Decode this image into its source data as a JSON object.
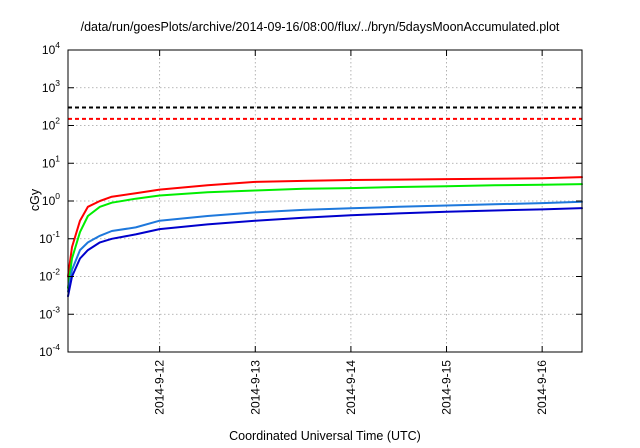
{
  "chart_data": {
    "type": "line",
    "title": "/data/run/goesPlots/archive/2014-09-16/08:00/flux/../bryn/5daysMoonAccumulated.plot",
    "xlabel": "Coordinated Universal Time (UTC)",
    "ylabel": "cGy",
    "y_scale": "log",
    "ylim": [
      0.0001,
      10000
    ],
    "y_ticks": [
      {
        "base": "10",
        "exp": "-4",
        "value": 0.0001
      },
      {
        "base": "10",
        "exp": "-3",
        "value": 0.001
      },
      {
        "base": "10",
        "exp": "-2",
        "value": 0.01
      },
      {
        "base": "10",
        "exp": "-1",
        "value": 0.1
      },
      {
        "base": "10",
        "exp": "0",
        "value": 1
      },
      {
        "base": "10",
        "exp": "1",
        "value": 10
      },
      {
        "base": "10",
        "exp": "2",
        "value": 100
      },
      {
        "base": "10",
        "exp": "3",
        "value": 1000
      },
      {
        "base": "10",
        "exp": "4",
        "value": 10000
      }
    ],
    "xlim": [
      "2014-09-11 01:00",
      "2014-09-16 10:00"
    ],
    "x_ticks": [
      {
        "label": "2014-9-12",
        "value": "2014-09-12 00:00"
      },
      {
        "label": "2014-9-13",
        "value": "2014-09-13 00:00"
      },
      {
        "label": "2014-9-14",
        "value": "2014-09-14 00:00"
      },
      {
        "label": "2014-9-15",
        "value": "2014-09-15 00:00"
      },
      {
        "label": "2014-9-16",
        "value": "2014-09-16 00:00"
      }
    ],
    "grid": true,
    "x": [
      "2014-09-11 01:00",
      "2014-09-11 02:00",
      "2014-09-11 04:00",
      "2014-09-11 06:00",
      "2014-09-11 09:00",
      "2014-09-11 12:00",
      "2014-09-11 18:00",
      "2014-09-12 00:00",
      "2014-09-12 12:00",
      "2014-09-13 00:00",
      "2014-09-13 12:00",
      "2014-09-14 00:00",
      "2014-09-14 12:00",
      "2014-09-15 00:00",
      "2014-09-15 12:00",
      "2014-09-16 00:00",
      "2014-09-16 10:00"
    ],
    "series": [
      {
        "color": "#000000",
        "style": "dashed",
        "values": [
          300,
          300,
          300,
          300,
          300,
          300,
          300,
          300,
          300,
          300,
          300,
          300,
          300,
          300,
          300,
          300,
          300
        ]
      },
      {
        "color": "#ff0000",
        "style": "dashed",
        "values": [
          150,
          150,
          150,
          150,
          150,
          150,
          150,
          150,
          150,
          150,
          150,
          150,
          150,
          150,
          150,
          150,
          150
        ]
      },
      {
        "color": "#ff0000",
        "style": "solid",
        "values": [
          0.01,
          0.06,
          0.3,
          0.7,
          1.0,
          1.3,
          1.6,
          2.0,
          2.6,
          3.2,
          3.4,
          3.6,
          3.7,
          3.8,
          3.9,
          4.0,
          4.3
        ]
      },
      {
        "color": "#00ee00",
        "style": "solid",
        "values": [
          0.005,
          0.03,
          0.15,
          0.4,
          0.7,
          0.9,
          1.15,
          1.4,
          1.7,
          1.9,
          2.1,
          2.2,
          2.35,
          2.45,
          2.6,
          2.7,
          2.8
        ]
      },
      {
        "color": "#1e78dc",
        "style": "solid",
        "values": [
          0.004,
          0.015,
          0.05,
          0.08,
          0.12,
          0.16,
          0.2,
          0.3,
          0.4,
          0.5,
          0.58,
          0.64,
          0.7,
          0.76,
          0.82,
          0.88,
          0.95
        ]
      },
      {
        "color": "#0000cc",
        "style": "solid",
        "values": [
          0.003,
          0.01,
          0.03,
          0.05,
          0.08,
          0.1,
          0.13,
          0.18,
          0.24,
          0.3,
          0.36,
          0.42,
          0.47,
          0.52,
          0.56,
          0.6,
          0.65
        ]
      }
    ]
  }
}
